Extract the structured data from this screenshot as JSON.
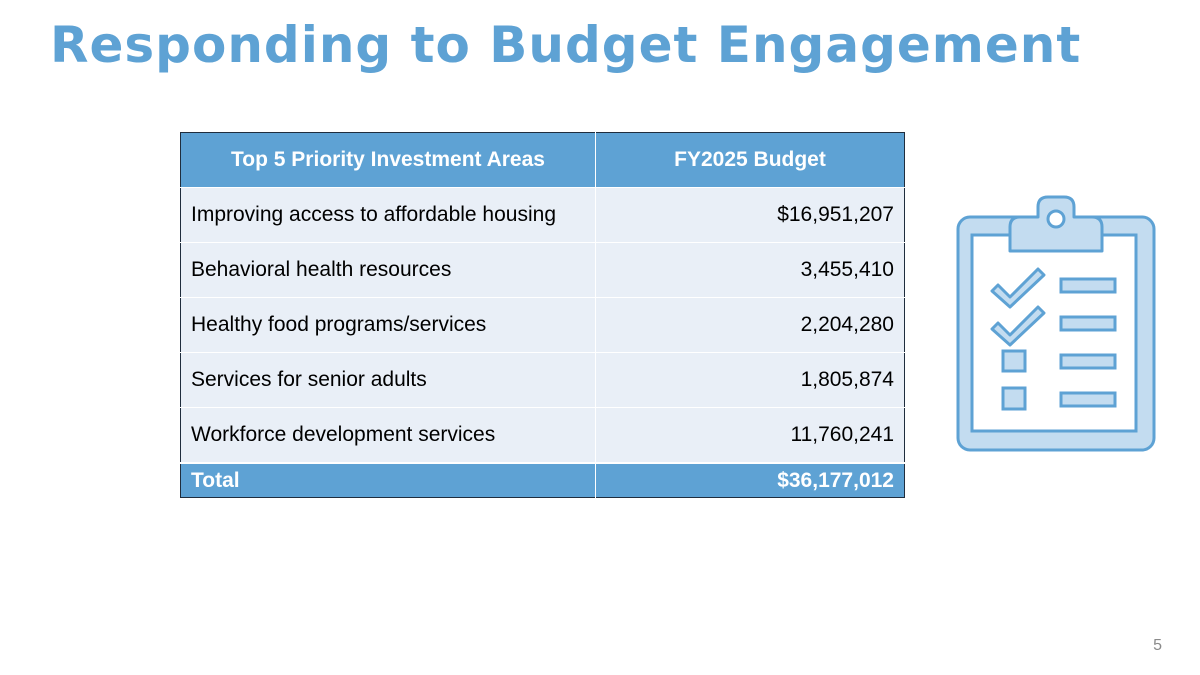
{
  "slide": {
    "title": "Responding to Budget Engagement",
    "page_number": "5"
  },
  "table": {
    "headers": [
      "Top 5 Priority Investment Areas",
      "FY2025 Budget"
    ],
    "rows": [
      {
        "area": "Improving access to affordable housing",
        "amount": "$16,951,207"
      },
      {
        "area": "Behavioral health resources",
        "amount": "3,455,410"
      },
      {
        "area": "Healthy food programs/services",
        "amount": "2,204,280"
      },
      {
        "area": "Services for senior adults",
        "amount": "1,805,874"
      },
      {
        "area": "Workforce development services",
        "amount": "11,760,241"
      }
    ],
    "total": {
      "label": "Total",
      "amount": "$36,177,012"
    }
  },
  "colors": {
    "accent": "#5ea2d4",
    "row_fill": "#e9eff7",
    "icon_fill": "#c3dcf0",
    "icon_stroke": "#5ea2d4"
  },
  "icons": {
    "clipboard": "clipboard-checklist-icon"
  }
}
